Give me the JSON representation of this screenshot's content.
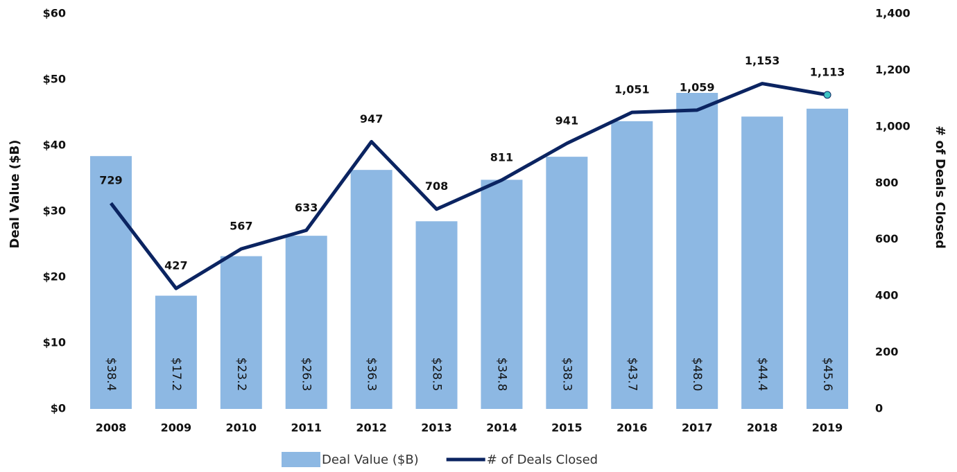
{
  "chart_data": {
    "type": "combo",
    "categories": [
      "2008",
      "2009",
      "2010",
      "2011",
      "2012",
      "2013",
      "2014",
      "2015",
      "2016",
      "2017",
      "2018",
      "2019"
    ],
    "series": [
      {
        "name": "Deal Value ($B)",
        "type": "bar",
        "color": "#8db8e3",
        "values": [
          38.4,
          17.2,
          23.2,
          26.3,
          36.3,
          28.5,
          34.8,
          38.3,
          43.7,
          48.0,
          44.4,
          45.6
        ],
        "value_labels": [
          "$38.4",
          "$17.2",
          "$23.2",
          "$26.3",
          "$36.3",
          "$28.5",
          "$34.8",
          "$38.3",
          "$43.7",
          "$48.0",
          "$44.4",
          "$45.6"
        ]
      },
      {
        "name": "# of Deals Closed",
        "type": "line",
        "axis": "y2",
        "color": "#0b2461",
        "marker_color": "#3fc4c4",
        "values": [
          729,
          427,
          567,
          633,
          947,
          708,
          811,
          941,
          1051,
          1059,
          1153,
          1113
        ],
        "value_labels": [
          "729",
          "427",
          "567",
          "633",
          "947",
          "708",
          "811",
          "941",
          "1,051",
          "1,059",
          "1,153",
          "1,113"
        ]
      }
    ],
    "y_label": "Deal Value ($B)",
    "y2_label": "# of Deals Closed",
    "ylim": [
      0,
      60
    ],
    "yticks": [
      {
        "value": 0,
        "label": "$0"
      },
      {
        "value": 10,
        "label": "$10"
      },
      {
        "value": 20,
        "label": "$20"
      },
      {
        "value": 30,
        "label": "$30"
      },
      {
        "value": 40,
        "label": "$40"
      },
      {
        "value": 50,
        "label": "$50"
      },
      {
        "value": 60,
        "label": "$60"
      }
    ],
    "y2lim": [
      0,
      1400
    ],
    "y2ticks": [
      0,
      200,
      400,
      600,
      800,
      {
        "value": 1000,
        "label": "1,000"
      },
      {
        "value": 1200,
        "label": "1,200"
      },
      {
        "value": 1400,
        "label": "1,400"
      }
    ],
    "legend": "bottom"
  }
}
